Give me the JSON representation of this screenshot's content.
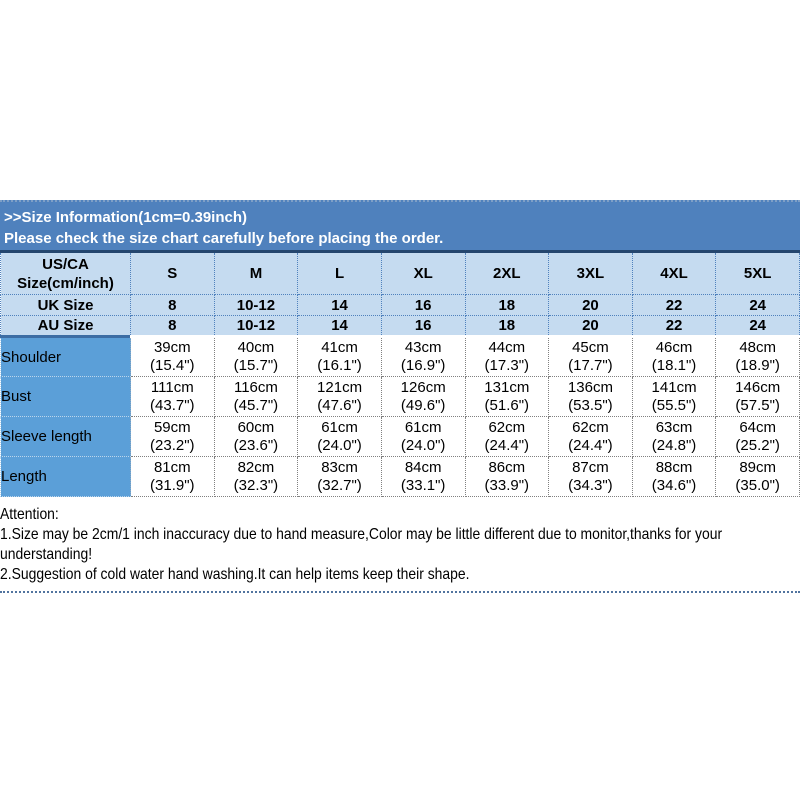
{
  "banner": {
    "title": ">>Size Information(1cm=0.39inch)",
    "subtitle": "Please check the size chart carefully before placing the order."
  },
  "table": {
    "corner": {
      "line1": "US/CA",
      "line2": "Size(cm/inch)"
    },
    "sizes": [
      "S",
      "M",
      "L",
      "XL",
      "2XL",
      "3XL",
      "4XL",
      "5XL"
    ],
    "size_rows": [
      {
        "label": "UK Size",
        "values": [
          "8",
          "10-12",
          "14",
          "16",
          "18",
          "20",
          "22",
          "24"
        ]
      },
      {
        "label": "AU Size",
        "values": [
          "8",
          "10-12",
          "14",
          "16",
          "18",
          "20",
          "22",
          "24"
        ]
      }
    ],
    "measurement_rows": [
      {
        "label": "Shoulder",
        "cm": [
          "39cm",
          "40cm",
          "41cm",
          "43cm",
          "44cm",
          "45cm",
          "46cm",
          "48cm"
        ],
        "inch": [
          "(15.4\")",
          "(15.7\")",
          "(16.1\")",
          "(16.9\")",
          "(17.3\")",
          "(17.7\")",
          "(18.1\")",
          "(18.9\")"
        ]
      },
      {
        "label": "Bust",
        "cm": [
          "111cm",
          "116cm",
          "121cm",
          "126cm",
          "131cm",
          "136cm",
          "141cm",
          "146cm"
        ],
        "inch": [
          "(43.7\")",
          "(45.7\")",
          "(47.6\")",
          "(49.6\")",
          "(51.6\")",
          "(53.5\")",
          "(55.5\")",
          "(57.5\")"
        ]
      },
      {
        "label": "Sleeve length",
        "cm": [
          "59cm",
          "60cm",
          "61cm",
          "61cm",
          "62cm",
          "62cm",
          "63cm",
          "64cm"
        ],
        "inch": [
          "(23.2\")",
          "(23.6\")",
          "(24.0\")",
          "(24.0\")",
          "(24.4\")",
          "(24.4\")",
          "(24.8\")",
          "(25.2\")"
        ]
      },
      {
        "label": "Length",
        "cm": [
          "81cm",
          "82cm",
          "83cm",
          "84cm",
          "86cm",
          "87cm",
          "88cm",
          "89cm"
        ],
        "inch": [
          "(31.9\")",
          "(32.3\")",
          "(32.7\")",
          "(33.1\")",
          "(33.9\")",
          "(34.3\")",
          "(34.6\")",
          "(35.0\")"
        ]
      }
    ]
  },
  "attention": {
    "heading": "Attention:",
    "note1": "1.Size may be 2cm/1 inch inaccuracy due to hand measure,Color may be little different due to monitor,thanks for your understanding!",
    "note2": "2.Suggestion of cold water hand washing.It can help items keep their shape."
  },
  "colors": {
    "banner_bg": "#4f81bd",
    "header_bg": "#c5dbf0",
    "label_bg": "#5b9fd8",
    "dotted_rule": "#51749f"
  }
}
